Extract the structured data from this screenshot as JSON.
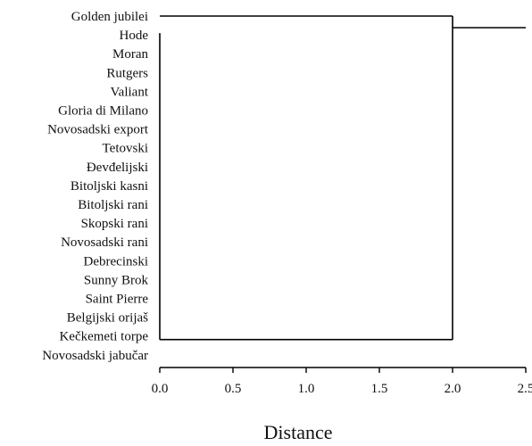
{
  "chart_data": {
    "type": "dendrogram",
    "title": "",
    "xlabel": "Distance",
    "ylabel": "",
    "xlim": [
      0.0,
      2.5
    ],
    "x_ticks": [
      0.0,
      0.5,
      1.0,
      1.5,
      2.0,
      2.5
    ],
    "x_tick_labels": [
      "0.0",
      "0.5",
      "1.0",
      "1.5",
      "2.0",
      "2.5"
    ],
    "leaves": [
      "Golden jubilei",
      "Hode",
      "Moran",
      "Rutgers",
      "Valiant",
      "Gloria di Milano",
      "Novosadski export",
      "Tetovski",
      "Đevđelijski",
      "Bitoljski kasni",
      "Bitoljski rani",
      "Skopski rani",
      "Novosadski rani",
      "Debrecinski",
      "Sunny Brok",
      "Saint Pierre",
      "Belgijski orijaš",
      "Kečkemeti torpe",
      "Novosadski jabučar"
    ],
    "merges": [
      {
        "members": [
          "Hode",
          "Moran",
          "Rutgers",
          "Valiant",
          "Gloria di Milano",
          "Novosadski export",
          "Tetovski",
          "Đevđelijski",
          "Bitoljski kasni",
          "Bitoljski rani",
          "Skopski rani",
          "Novosadski rani",
          "Debrecinski",
          "Sunny Brok",
          "Saint Pierre",
          "Belgijski orijaš",
          "Kečkemeti torpe",
          "Novosadski jabučar"
        ],
        "distance": 0.0
      },
      {
        "members": [
          "Golden jubilei",
          "all other cultivars"
        ],
        "distance": 2.0
      }
    ],
    "root_extends_to": 2.5
  }
}
